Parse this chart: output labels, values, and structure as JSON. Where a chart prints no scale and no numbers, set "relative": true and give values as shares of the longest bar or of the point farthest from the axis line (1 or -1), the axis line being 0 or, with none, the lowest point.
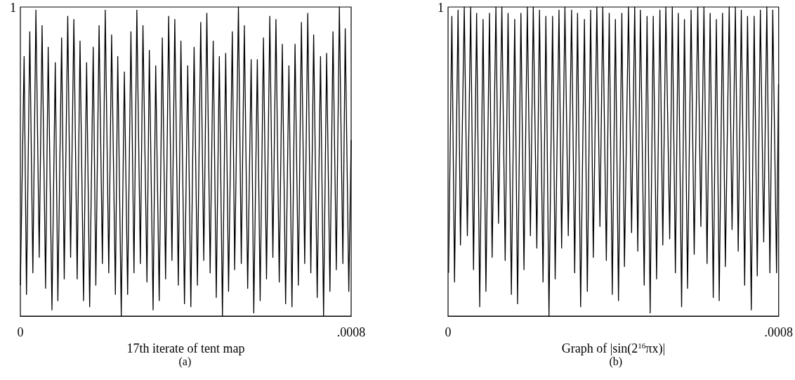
{
  "chart_data": [
    {
      "type": "line",
      "xlabel": "17th iterate of tent map",
      "annotations": [
        "1",
        "(a)"
      ],
      "relative": true,
      "xlim": [
        0,
        0.0008
      ],
      "xticks": [
        0,
        {
          "value": 0.0008,
          "label": ".0008"
        }
      ],
      "series": [
        {
          "color": "#000000",
          "x": [
            0,
            9.1e-06,
            1.48e-05,
            2.28e-05,
            3.02e-05,
            3.76e-05,
            4.56e-05,
            5.25e-05,
            6.1e-05,
            6.73e-05,
            7.64e-05,
            8.44e-05,
            9.07e-05,
            9.98e-05,
            0.0001061,
            0.0001146,
            0.0001215,
            0.0001294,
            0.0001374,
            0.0001443,
            0.0001528,
            0.0001602,
            0.0001676,
            0.0001762,
            0.0001825,
            0.0001904,
            0.0001984,
            0.0002053,
            0.0002138,
            0.0002207,
            0.0002298,
            0.0002355,
            0.000244,
            0.0002515,
            0.0002594,
            0.0002674,
            0.0002748,
            0.0002817,
            0.0002902,
            0.0002965,
            0.0003062,
            0.0003119,
            0.000321,
            0.0003273,
            0.0003358,
            0.0003433,
            0.0003512,
            0.0003587,
            0.0003666,
            0.0003735,
            0.000382,
            0.0003883,
            0.0003969,
            0.0004048,
            0.0004123,
            0.0004202,
            0.0004282,
            0.0004362,
            0.0004436,
            0.000451,
            0.000459,
            0.0004664,
            0.0004738,
            0.0004812,
            0.0004887,
            0.0004966,
            0.0005035,
            0.0005126,
            0.0005183,
            0.0005274,
            0.0005343,
            0.0005417,
            0.0005497,
            0.0005582,
            0.0005645,
            0.0005731,
            0.0005799,
            0.0005879,
            0.0005953,
            0.0006033,
            0.0006107,
            0.0006181,
            0.0006261,
            0.0006335,
            0.0006415,
            0.0006495,
            0.0006569,
            0.0006643,
            0.0006723,
            0.0006797,
            0.0006877,
            0.0006951,
            0.0007025,
            0.0007093,
            0.0007179,
            0.0007259,
            0.0007333,
            0.0007407,
            0.0007487,
            0.0007561,
            0.0007641,
            0.0007715,
            0.00078,
            0.0007857,
            0.0007943,
            0.0008
          ],
          "values": [
            0.1,
            0.84,
            0.07,
            0.92,
            0.14,
            0.99,
            0.19,
            0.94,
            0.09,
            0.87,
            0.02,
            0.82,
            0.05,
            0.9,
            0.12,
            0.97,
            0.19,
            0.96,
            0.12,
            0.89,
            0.05,
            0.82,
            0.03,
            0.87,
            0.1,
            0.94,
            0.17,
            0.99,
            0.14,
            0.91,
            0.07,
            0.84,
            0.0,
            0.79,
            0.07,
            0.92,
            0.14,
            0.99,
            0.17,
            0.94,
            0.11,
            0.86,
            0.02,
            0.81,
            0.05,
            0.9,
            0.12,
            0.97,
            0.18,
            0.96,
            0.1,
            0.89,
            0.04,
            0.81,
            0.03,
            0.87,
            0.1,
            0.95,
            0.18,
            0.98,
            0.14,
            0.89,
            0.06,
            0.84,
            0.0,
            0.85,
            0.08,
            0.92,
            0.15,
            1.0,
            0.17,
            0.94,
            0.09,
            0.83,
            0.01,
            0.83,
            0.05,
            0.9,
            0.12,
            0.97,
            0.19,
            0.96,
            0.11,
            0.88,
            0.04,
            0.81,
            0.03,
            0.88,
            0.1,
            0.95,
            0.17,
            0.98,
            0.14,
            0.91,
            0.06,
            0.84,
            0.0,
            0.85,
            0.08,
            0.92,
            0.15,
            1.0,
            0.17,
            0.93,
            0.08,
            0.57
          ]
        }
      ]
    },
    {
      "type": "line",
      "xlabel": "Graph of |sin(2$^{16}$πx)|",
      "annotations": [
        "1",
        "(b)"
      ],
      "relative": true,
      "xlim": [
        0,
        0.0008
      ],
      "xticks": [
        0,
        {
          "value": 0.0008,
          "label": ".0008"
        }
      ],
      "series": [
        {
          "color": "#000000",
          "x": [
            1.2e-06,
            9.2e-06,
            1.56e-05,
            2.42e-05,
            3e-05,
            3.92e-05,
            4.67e-05,
            5.47e-05,
            6.16e-05,
            6.91e-05,
            7.66e-05,
            8.47e-05,
            9.16e-05,
            0.0001002,
            0.0001066,
            0.0001158,
            0.0001221,
            0.0001302,
            0.0001382,
            0.0001452,
            0.0001532,
            0.0001613,
            0.0001682,
            0.0001763,
            0.0001837,
            0.0001918,
            0.0001993,
            0.0002062,
            0.0002148,
            0.0002212,
            0.0002298,
            0.0002367,
            0.0002442,
            0.0002529,
            0.0002592,
            0.0002684,
            0.0002748,
            0.0002828,
            0.0002909,
            0.0002989,
            0.0003064,
            0.0003133,
            0.0003208,
            0.00033,
            0.000337,
            0.000345,
            0.0003514,
            0.00036,
            0.0003675,
            0.0003744,
            0.000383,
            0.00039,
            0.0003974,
            0.0004049,
            0.0004124,
            0.0004205,
            0.0004268,
            0.0004366,
            0.0004441,
            0.0004516,
            0.0004591,
            0.0004654,
            0.0004746,
            0.0004815,
            0.000489,
            0.0004965,
            0.0005046,
            0.0005126,
            0.0005196,
            0.000527,
            0.0005363,
            0.0005426,
            0.0005501,
            0.000557,
            0.0005651,
            0.000572,
            0.0005795,
            0.0005881,
            0.0005956,
            0.0006042,
            0.0006117,
            0.0006192,
            0.0006267,
            0.0006342,
            0.0006417,
            0.0006492,
            0.0006561,
            0.0006641,
            0.000671,
            0.0006803,
            0.0006872,
            0.0006952,
            0.0007021,
            0.0007096,
            0.0007177,
            0.0007246,
            0.0007338,
            0.0007407,
            0.0007482,
            0.0007557,
            0.0007638,
            0.0007713,
            0.0007788,
            0.0007857,
            0.0007949,
            0.0007995
          ],
          "values": [
            0.14,
            0.97,
            0.11,
            0.99,
            0.23,
            1.0,
            0.26,
            1.0,
            0.15,
            0.98,
            0.03,
            0.96,
            0.08,
            0.98,
            0.19,
            1.0,
            0.3,
            1.0,
            0.18,
            0.98,
            0.07,
            0.96,
            0.04,
            0.98,
            0.15,
            1.0,
            0.26,
            1.0,
            0.22,
            0.99,
            0.11,
            0.97,
            0.0,
            0.97,
            0.12,
            0.99,
            0.22,
            1.0,
            0.26,
            0.99,
            0.14,
            0.98,
            0.03,
            0.96,
            0.08,
            0.99,
            0.19,
            1.0,
            0.29,
            1.0,
            0.18,
            0.98,
            0.07,
            0.96,
            0.05,
            0.98,
            0.16,
            1.0,
            0.27,
            1.0,
            0.21,
            0.99,
            0.1,
            0.97,
            0.01,
            0.97,
            0.12,
            0.99,
            0.23,
            1.0,
            0.25,
            1.0,
            0.14,
            0.98,
            0.03,
            0.96,
            0.09,
            0.99,
            0.2,
            1.0,
            0.29,
            1.0,
            0.17,
            0.98,
            0.06,
            0.96,
            0.05,
            0.98,
            0.16,
            1.0,
            0.28,
            1.0,
            0.21,
            0.99,
            0.1,
            0.97,
            0.02,
            0.97,
            0.13,
            0.99,
            0.24,
            1.0,
            0.14,
            0.99,
            0.14,
            0.75
          ]
        }
      ]
    }
  ]
}
